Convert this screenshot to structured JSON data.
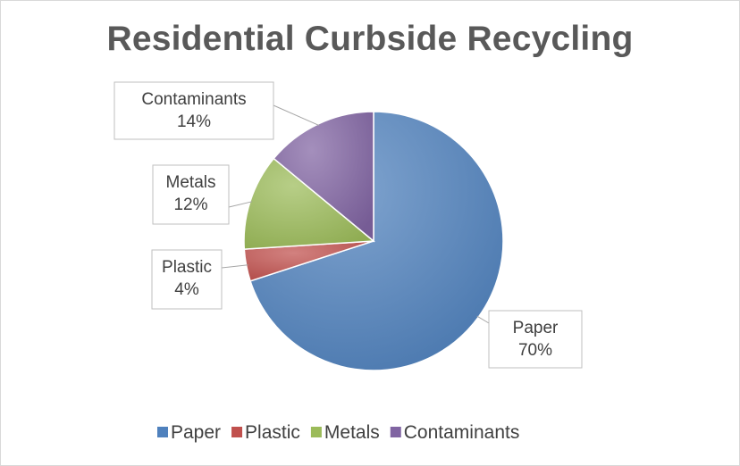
{
  "chart_data": {
    "type": "pie",
    "title": "Residential Curbside Recycling",
    "categories": [
      "Paper",
      "Plastic",
      "Metals",
      "Contaminants"
    ],
    "values": [
      70,
      4,
      12,
      14
    ],
    "data_labels": [
      "70%",
      "4%",
      "12%",
      "14%"
    ],
    "colors": [
      "#4f81bd",
      "#c0504d",
      "#9bbb59",
      "#8064a2"
    ],
    "start_angle_deg": 0,
    "direction": "clockwise",
    "legend_position": "bottom",
    "data_label_style": "callout"
  }
}
